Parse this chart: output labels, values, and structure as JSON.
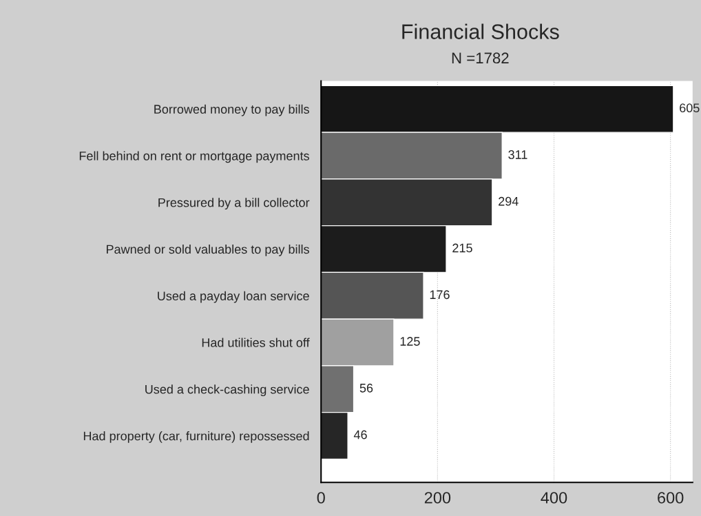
{
  "chart_data": {
    "type": "bar",
    "orientation": "horizontal",
    "title": "Financial Shocks",
    "subtitle": "N =1782",
    "categories": [
      "Borrowed money to pay bills",
      "Fell behind on rent or mortgage payments",
      "Pressured by a bill collector",
      "Pawned or sold valuables to pay bills",
      "Used a payday loan service",
      "Had utilities shut off",
      "Used a check-cashing service",
      "Had property (car, furniture) repossessed"
    ],
    "values": [
      605,
      311,
      294,
      215,
      176,
      125,
      56,
      46
    ],
    "colors": [
      "#161616",
      "#6a6a6a",
      "#333333",
      "#1c1c1c",
      "#555555",
      "#a0a0a0",
      "#707070",
      "#262626"
    ],
    "xlim": [
      0,
      638
    ],
    "xticks": [
      0,
      200,
      400,
      600
    ],
    "grid": "x",
    "data_labels": true
  }
}
